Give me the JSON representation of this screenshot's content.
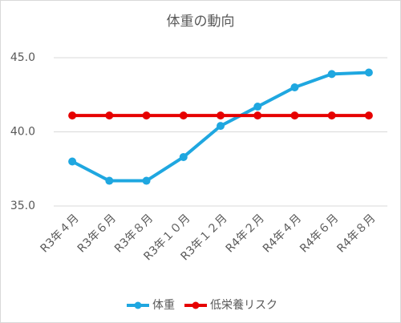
{
  "chart_data": {
    "type": "line",
    "title": "体重の動向",
    "categories": [
      "R3年４月",
      "R3年６月",
      "R3年８月",
      "R3年１０月",
      "R3年１２月",
      "R4年２月",
      "R4年４月",
      "R4年６月",
      "R4年８月"
    ],
    "series": [
      {
        "name": "体重",
        "color": "#1fa7e0",
        "values": [
          38.0,
          36.7,
          36.7,
          38.3,
          40.4,
          41.7,
          43.0,
          43.9,
          44.0
        ]
      },
      {
        "name": "低栄養リスク",
        "color": "#e60000",
        "values": [
          41.1,
          41.1,
          41.1,
          41.1,
          41.1,
          41.1,
          41.1,
          41.1,
          41.1
        ]
      }
    ],
    "ylim": [
      35,
      45
    ],
    "yticks": [
      {
        "value": 35,
        "label": "35.0"
      },
      {
        "value": 40,
        "label": "40.0"
      },
      {
        "value": 45,
        "label": "45.0"
      }
    ],
    "grid": true,
    "legend": "bottom"
  }
}
